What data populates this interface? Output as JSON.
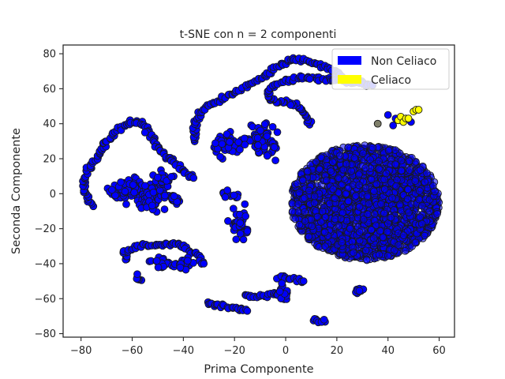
{
  "chart_data": {
    "type": "scatter",
    "title": "t-SNE con n = 2 componenti",
    "xlabel": "Prima Componente",
    "ylabel": "Seconda Componente",
    "xlim": [
      -87,
      66
    ],
    "ylim": [
      -82,
      85
    ],
    "xticks": [
      -80,
      -60,
      -40,
      -20,
      0,
      20,
      40,
      60
    ],
    "yticks": [
      -80,
      -60,
      -40,
      -20,
      0,
      20,
      40,
      60,
      80
    ],
    "legend_position": "top-right",
    "series": [
      {
        "name": "Non Celiaco",
        "color": "#0000ff"
      },
      {
        "name": "Celiaco",
        "color": "#ffff00"
      }
    ],
    "non_celiaco_curves": [
      [
        [
          -76,
          -7
        ],
        [
          -78,
          -2
        ],
        [
          -79,
          5
        ],
        [
          -78,
          13
        ],
        [
          -74,
          21
        ],
        [
          -70,
          29
        ],
        [
          -66,
          36
        ],
        [
          -62,
          40
        ],
        [
          -58,
          41
        ],
        [
          -55,
          39
        ],
        [
          -53,
          34
        ],
        [
          -51,
          28
        ],
        [
          -47,
          22
        ],
        [
          -43,
          17
        ],
        [
          -39,
          12
        ],
        [
          -36,
          9
        ]
      ],
      [
        [
          -35,
          30
        ],
        [
          -36,
          38
        ],
        [
          -34,
          45
        ],
        [
          -30,
          50
        ],
        [
          -24,
          55
        ],
        [
          -17,
          60
        ],
        [
          -10,
          66
        ],
        [
          -5,
          71
        ],
        [
          -1,
          75
        ],
        [
          3,
          77
        ],
        [
          8,
          76
        ],
        [
          13,
          74
        ],
        [
          18,
          71
        ],
        [
          22,
          67
        ]
      ],
      [
        [
          9,
          40
        ],
        [
          8,
          45
        ],
        [
          5,
          50
        ],
        [
          1,
          52
        ],
        [
          -5,
          53
        ],
        [
          -7,
          56
        ],
        [
          -6,
          61
        ],
        [
          -1,
          64
        ],
        [
          6,
          66
        ],
        [
          12,
          66
        ],
        [
          18,
          65
        ],
        [
          24,
          64
        ],
        [
          30,
          63
        ],
        [
          34,
          62
        ]
      ],
      [
        [
          -62,
          -38
        ],
        [
          -63,
          -33
        ],
        [
          -58,
          -30
        ],
        [
          -50,
          -29
        ],
        [
          -43,
          -29
        ],
        [
          -39,
          -31
        ],
        [
          -34,
          -36
        ],
        [
          -32,
          -40
        ]
      ],
      [
        [
          -57,
          -50
        ],
        [
          -58,
          -46
        ]
      ],
      [
        [
          -30,
          -62
        ],
        [
          -26,
          -64
        ],
        [
          -20,
          -65
        ],
        [
          -15,
          -67
        ]
      ],
      [
        [
          -16,
          -58
        ],
        [
          -12,
          -59
        ],
        [
          -8,
          -58
        ],
        [
          -3,
          -57
        ]
      ],
      [
        [
          -3,
          -48
        ],
        [
          1,
          -48
        ],
        [
          4,
          -49
        ],
        [
          7,
          -50
        ]
      ],
      [
        [
          11,
          -72
        ],
        [
          13,
          -73
        ],
        [
          15,
          -72
        ]
      ]
    ],
    "non_celiaco_clusters": [
      {
        "center": [
          -60,
          2
        ],
        "spread": [
          8,
          5
        ],
        "count": 90
      },
      {
        "center": [
          -52,
          -2
        ],
        "spread": [
          5,
          7
        ],
        "count": 55
      },
      {
        "center": [
          -48,
          8
        ],
        "spread": [
          3,
          3
        ],
        "count": 25
      },
      {
        "center": [
          -43,
          -3
        ],
        "spread": [
          2,
          3
        ],
        "count": 15
      },
      {
        "center": [
          -22,
          28
        ],
        "spread": [
          5,
          6
        ],
        "count": 45
      },
      {
        "center": [
          -9,
          30
        ],
        "spread": [
          6,
          7
        ],
        "count": 60
      },
      {
        "center": [
          -18,
          -17
        ],
        "spread": [
          3,
          8
        ],
        "count": 40
      },
      {
        "center": [
          -22,
          0
        ],
        "spread": [
          3,
          2
        ],
        "count": 14
      },
      {
        "center": [
          -48,
          -40
        ],
        "spread": [
          3,
          3
        ],
        "count": 22
      },
      {
        "center": [
          -40,
          -40
        ],
        "spread": [
          4,
          3
        ],
        "count": 30
      },
      {
        "center": [
          -1,
          -57
        ],
        "spread": [
          2,
          5
        ],
        "count": 18
      },
      {
        "center": [
          29,
          -56
        ],
        "spread": [
          2,
          2
        ],
        "count": 12
      }
    ],
    "non_celiaco_ellipse": {
      "center": [
        31,
        -5
      ],
      "semi_axes": [
        29,
        33
      ],
      "count": 2200
    },
    "non_celiaco_isolated": [
      [
        -55,
        35
      ],
      [
        -23,
        34
      ],
      [
        -4,
        19
      ],
      [
        36,
        40
      ],
      [
        40,
        45
      ],
      [
        42,
        39
      ],
      [
        43,
        43
      ],
      [
        49,
        41
      ]
    ],
    "celiaco_points": [
      [
        44,
        42
      ],
      [
        45,
        44
      ],
      [
        46,
        41
      ],
      [
        47,
        43
      ],
      [
        48,
        43
      ],
      [
        50,
        47
      ],
      [
        51,
        48
      ],
      [
        52,
        48
      ]
    ],
    "outlier_gray_points": [
      [
        36,
        40
      ]
    ]
  }
}
